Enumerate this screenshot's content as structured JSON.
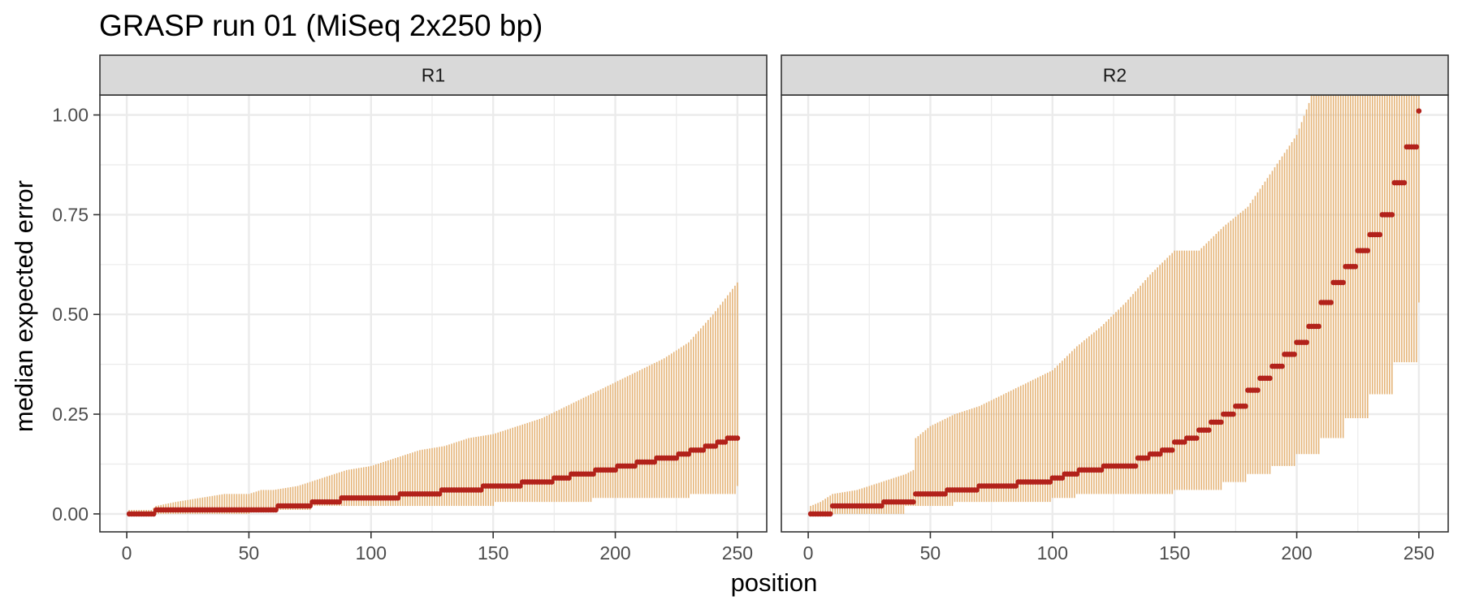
{
  "chart_data": {
    "type": "scatter",
    "title": "GRASP run 01 (MiSeq 2x250 bp)",
    "xlabel": "position",
    "ylabel": "median expected error",
    "xlim": [
      -11,
      262
    ],
    "ylim": [
      -0.045,
      1.05
    ],
    "x_ticks": [
      0,
      50,
      100,
      150,
      200,
      250
    ],
    "x_tick_labels": [
      "0",
      "50",
      "100",
      "150",
      "200",
      "250"
    ],
    "y_ticks": [
      0.0,
      0.25,
      0.5,
      0.75,
      1.0
    ],
    "y_tick_labels": [
      "0.00",
      "0.25",
      "0.50",
      "0.75",
      "1.00"
    ],
    "grid": true,
    "colors": {
      "point": "#b2221b",
      "errorbar": "#e5b478",
      "strip_fill": "#d9d9d9",
      "panel_border": "#333333",
      "grid": "#ebebeb"
    },
    "panels": [
      {
        "label": "R1",
        "positions": [
          1,
          250
        ],
        "median": {
          "x": [
            1,
            11,
            12,
            61,
            62,
            75,
            76,
            87,
            88,
            111,
            112,
            128,
            129,
            145,
            146,
            161,
            162,
            174,
            175,
            181,
            182,
            191,
            192,
            200,
            201,
            208,
            209,
            216,
            217,
            225,
            226,
            230,
            231,
            236,
            237,
            241,
            242,
            245,
            246,
            250
          ],
          "y": [
            0.0,
            0.0,
            0.01,
            0.01,
            0.02,
            0.02,
            0.03,
            0.03,
            0.04,
            0.04,
            0.05,
            0.05,
            0.06,
            0.06,
            0.07,
            0.07,
            0.08,
            0.08,
            0.09,
            0.09,
            0.1,
            0.1,
            0.11,
            0.11,
            0.12,
            0.12,
            0.13,
            0.13,
            0.14,
            0.14,
            0.15,
            0.15,
            0.16,
            0.16,
            0.17,
            0.17,
            0.18,
            0.18,
            0.19,
            0.19
          ]
        },
        "upper": {
          "x": [
            1,
            10,
            12,
            20,
            30,
            40,
            50,
            55,
            60,
            70,
            80,
            90,
            100,
            110,
            120,
            130,
            140,
            150,
            160,
            170,
            180,
            190,
            200,
            210,
            220,
            230,
            240,
            250
          ],
          "y": [
            0.01,
            0.01,
            0.02,
            0.03,
            0.04,
            0.05,
            0.05,
            0.06,
            0.06,
            0.07,
            0.09,
            0.11,
            0.12,
            0.14,
            0.16,
            0.17,
            0.19,
            0.2,
            0.22,
            0.24,
            0.27,
            0.3,
            0.33,
            0.36,
            0.39,
            0.43,
            0.5,
            0.58
          ]
        },
        "lower": {
          "x": [
            1,
            50,
            51,
            75,
            76,
            150,
            151,
            190,
            191,
            230,
            231,
            250
          ],
          "y": [
            0.0,
            0.0,
            0.01,
            0.01,
            0.02,
            0.02,
            0.03,
            0.03,
            0.04,
            0.04,
            0.05,
            0.07
          ]
        }
      },
      {
        "label": "R2",
        "positions": [
          1,
          250
        ],
        "median": {
          "x": [
            1,
            9,
            10,
            30,
            31,
            43,
            44,
            56,
            57,
            69,
            70,
            85,
            86,
            99,
            100,
            104,
            105,
            110,
            111,
            120,
            121,
            130,
            135,
            140,
            145,
            150,
            155,
            160,
            165,
            170,
            175,
            180,
            185,
            190,
            195,
            200,
            205,
            210,
            215,
            220,
            225,
            230,
            235,
            240,
            245,
            250
          ],
          "y": [
            0.0,
            0.0,
            0.02,
            0.02,
            0.03,
            0.03,
            0.05,
            0.05,
            0.06,
            0.06,
            0.07,
            0.07,
            0.08,
            0.08,
            0.09,
            0.09,
            0.1,
            0.1,
            0.11,
            0.11,
            0.12,
            0.12,
            0.14,
            0.15,
            0.16,
            0.18,
            0.19,
            0.21,
            0.23,
            0.25,
            0.27,
            0.31,
            0.34,
            0.37,
            0.4,
            0.43,
            0.47,
            0.53,
            0.58,
            0.62,
            0.66,
            0.7,
            0.75,
            0.83,
            0.92,
            1.01
          ]
        },
        "upper": {
          "x": [
            1,
            5,
            10,
            20,
            30,
            40,
            43,
            44,
            50,
            60,
            70,
            80,
            90,
            100,
            110,
            120,
            130,
            140,
            150,
            160,
            170,
            180,
            190,
            200,
            205,
            206,
            250
          ],
          "y": [
            0.02,
            0.03,
            0.05,
            0.06,
            0.08,
            0.1,
            0.11,
            0.19,
            0.22,
            0.25,
            0.27,
            0.3,
            0.33,
            0.36,
            0.42,
            0.47,
            0.53,
            0.6,
            0.66,
            0.66,
            0.72,
            0.77,
            0.86,
            0.95,
            1.03,
            1.05,
            1.05
          ]
        },
        "lower": {
          "x": [
            1,
            30,
            40,
            60,
            80,
            100,
            110,
            130,
            150,
            170,
            180,
            190,
            200,
            210,
            220,
            230,
            240,
            250
          ],
          "y": [
            0.0,
            0.0,
            0.02,
            0.03,
            0.03,
            0.04,
            0.05,
            0.05,
            0.06,
            0.08,
            0.1,
            0.12,
            0.15,
            0.19,
            0.24,
            0.3,
            0.38,
            0.53
          ]
        }
      }
    ]
  }
}
